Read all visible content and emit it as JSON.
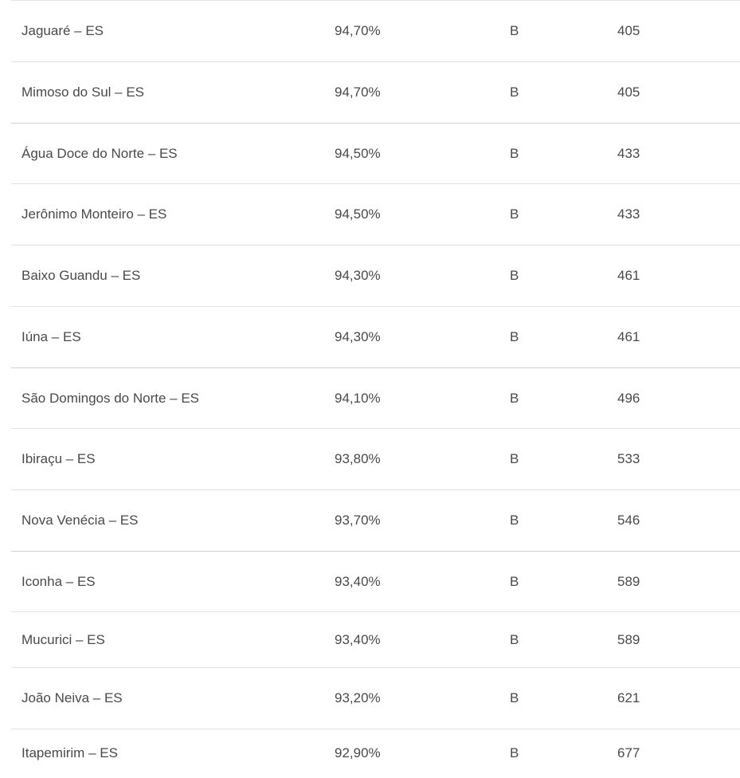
{
  "table": {
    "rows": [
      {
        "municipio": "Jaguaré – ES",
        "percentual": "94,70%",
        "conceito": "B",
        "posicao": "405"
      },
      {
        "municipio": "Mimoso do Sul – ES",
        "percentual": "94,70%",
        "conceito": "B",
        "posicao": "405"
      },
      {
        "municipio": "Água Doce do Norte – ES",
        "percentual": "94,50%",
        "conceito": "B",
        "posicao": "433"
      },
      {
        "municipio": "Jerônimo Monteiro – ES",
        "percentual": "94,50%",
        "conceito": "B",
        "posicao": "433"
      },
      {
        "municipio": "Baixo Guandu – ES",
        "percentual": "94,30%",
        "conceito": "B",
        "posicao": "461"
      },
      {
        "municipio": "Iúna – ES",
        "percentual": "94,30%",
        "conceito": "B",
        "posicao": "461"
      },
      {
        "municipio": "São Domingos do Norte – ES",
        "percentual": "94,10%",
        "conceito": "B",
        "posicao": "496"
      },
      {
        "municipio": "Ibiraçu – ES",
        "percentual": "93,80%",
        "conceito": "B",
        "posicao": "533"
      },
      {
        "municipio": "Nova Venécia – ES",
        "percentual": "93,70%",
        "conceito": "B",
        "posicao": "546"
      },
      {
        "municipio": "Iconha – ES",
        "percentual": "93,40%",
        "conceito": "B",
        "posicao": "589"
      },
      {
        "municipio": "Mucurici – ES",
        "percentual": "93,40%",
        "conceito": "B",
        "posicao": "589"
      },
      {
        "municipio": "João Neiva – ES",
        "percentual": "93,20%",
        "conceito": "B",
        "posicao": "621"
      },
      {
        "municipio": "Itapemirim – ES",
        "percentual": "92,90%",
        "conceito": "B",
        "posicao": "677"
      }
    ]
  }
}
